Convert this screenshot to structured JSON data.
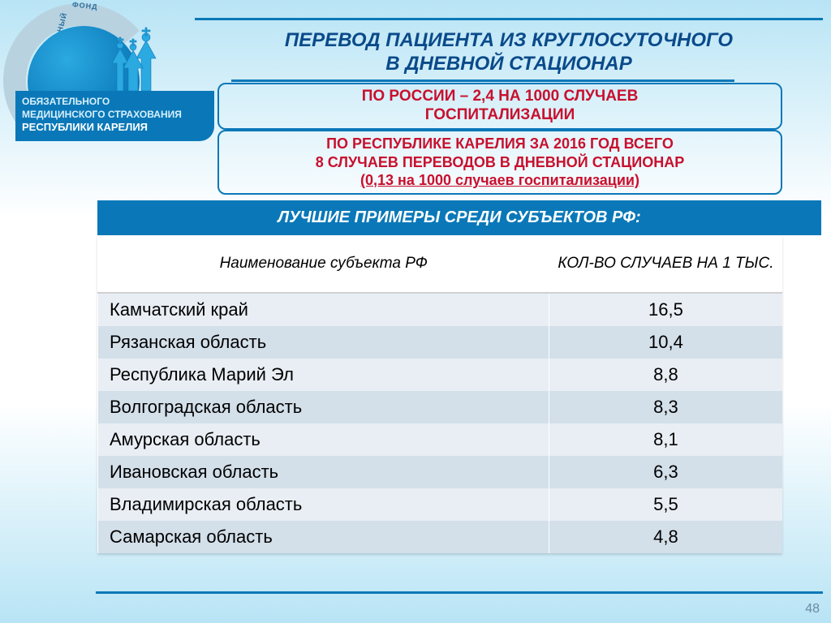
{
  "colors": {
    "accent": "#0a78b8",
    "darktext": "#0a4a8a",
    "red": "#c8102e",
    "row_odd": "#e8eef4",
    "row_even": "#d3dfe9",
    "ring": "#b9d2e0"
  },
  "logo": {
    "ring_top": "ТЕРРИТОРИАЛЬНЫЙ",
    "ring_side": "ФОНД",
    "line1": "ОБЯЗАТЕЛЬНОГО",
    "line2": "МЕДИЦИНСКОГО СТРАХОВАНИЯ",
    "line3": "РЕСПУБЛИКИ КАРЕЛИЯ"
  },
  "title": {
    "line1": "ПЕРЕВОД ПАЦИЕНТА ИЗ КРУГЛОСУТОЧНОГО",
    "line2": "В ДНЕВНОЙ СТАЦИОНАР"
  },
  "stat1": {
    "line1": "ПО РОССИИ – 2,4 НА 1000 СЛУЧАЕВ",
    "line2": "ГОСПИТАЛИЗАЦИИ"
  },
  "stat2": {
    "line1": "ПО РЕСПУБЛИКЕ КАРЕЛИЯ ЗА 2016 ГОД ВСЕГО",
    "line2": "8 СЛУЧАЕВ ПЕРЕВОДОВ В ДНЕВНОЙ СТАЦИОНАР",
    "line3": "(0,13 на 1000 случаев госпитализации)"
  },
  "band": "ЛУЧШИЕ ПРИМЕРЫ СРЕДИ СУБЪЕКТОВ РФ:",
  "table": {
    "columns": [
      "Наименование субъекта РФ",
      "КОЛ-ВО СЛУЧАЕВ НА 1 ТЫС."
    ],
    "rows": [
      [
        "Камчатский край",
        "16,5"
      ],
      [
        "Рязанская область",
        "10,4"
      ],
      [
        "Республика Марий Эл",
        "8,8"
      ],
      [
        "Волгоградская область",
        "8,3"
      ],
      [
        "Амурская область",
        "8,1"
      ],
      [
        "Ивановская область",
        "6,3"
      ],
      [
        "Владимирская область",
        "5,5"
      ],
      [
        "Самарская область",
        "4,8"
      ]
    ]
  },
  "page_number": "48"
}
